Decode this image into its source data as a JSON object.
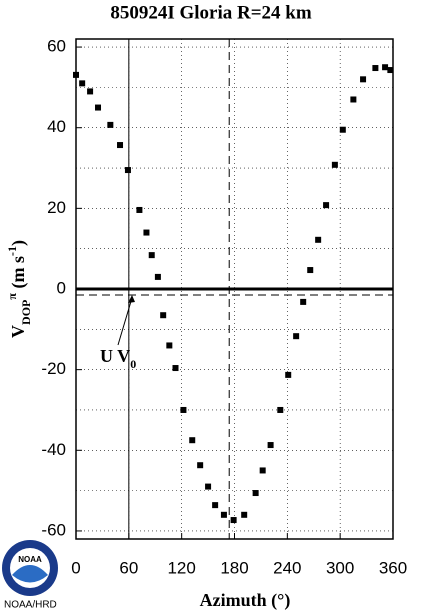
{
  "chart_data": {
    "type": "scatter",
    "title": "850924I  Gloria  R=24  km",
    "x_label": "Azimuth  (°)",
    "y_label": [
      {
        "text": "V"
      },
      {
        "text": "DOP",
        "shift": "sub"
      },
      {
        "text": "π",
        "shift": "sup"
      },
      {
        "text": " (m s"
      },
      {
        "text": "-1",
        "shift": "sup"
      },
      {
        "text": ")"
      }
    ],
    "annotation": [
      {
        "text": "U V"
      },
      {
        "text": "0",
        "shift": "sub"
      }
    ],
    "logo_text": "NOAA",
    "footer": "NOAA/HRD",
    "color": "#000000",
    "xlim": [
      0,
      360
    ],
    "xticks": [
      0,
      60,
      120,
      180,
      240,
      300,
      360
    ],
    "ylim": [
      -62,
      62
    ],
    "yticks": [
      -60,
      -40,
      -20,
      0,
      20,
      40,
      60
    ],
    "y_minor_grid": [
      -50,
      -30,
      -10,
      10,
      30,
      50
    ],
    "grid": true,
    "hlines": [
      {
        "value": 0,
        "style": "solid"
      },
      {
        "value": -1.5,
        "style": "dashed"
      }
    ],
    "vlines": [
      {
        "value": 60,
        "style": "solid"
      },
      {
        "value": 174,
        "style": "dashed"
      }
    ],
    "x": [
      0,
      7,
      16,
      25,
      39,
      50,
      59,
      72,
      80,
      86,
      93,
      99,
      106,
      113,
      122,
      132,
      141,
      150,
      158,
      168,
      179,
      191,
      204,
      212,
      221,
      232,
      241,
      250,
      258,
      266,
      275,
      284,
      294,
      303,
      315,
      326,
      340,
      351,
      357
    ],
    "values": [
      53.1,
      51,
      49,
      45,
      40.7,
      35.7,
      29.5,
      19.6,
      14,
      8.4,
      3,
      -6.5,
      -14,
      -19.6,
      -30,
      -37.5,
      -43.7,
      -49,
      -53.6,
      -56,
      -57.3,
      -56,
      -50.6,
      -45,
      -38.7,
      -30,
      -21.3,
      -11.7,
      -3.2,
      4.7,
      12.2,
      20.8,
      30.8,
      39.5,
      47,
      52,
      54.8,
      55,
      54.3
    ]
  }
}
